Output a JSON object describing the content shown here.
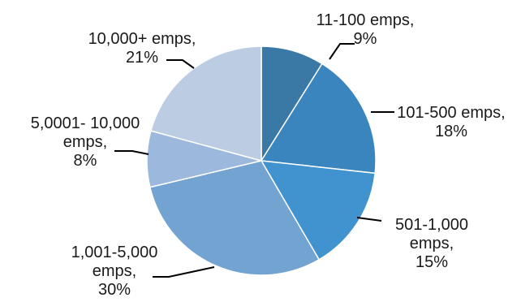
{
  "chart_data": {
    "type": "pie",
    "title": "",
    "start": "12 o'clock, clockwise",
    "slices": [
      {
        "category": "11-100 emps",
        "value": 9,
        "label_lines": [
          "11-100 emps,",
          "9%"
        ],
        "color": "#3a78a6"
      },
      {
        "category": "101-500 emps",
        "value": 18,
        "label_lines": [
          "101-500 emps,",
          "18%"
        ],
        "color": "#3a85bd"
      },
      {
        "category": "501-1,000 emps",
        "value": 15,
        "label_lines": [
          "501-1,000",
          "emps,",
          "15%"
        ],
        "color": "#4093cf"
      },
      {
        "category": "1,001-5,000 emps",
        "value": 30,
        "label_lines": [
          "1,001-5,000",
          "emps,",
          "30%"
        ],
        "color": "#72a3d1"
      },
      {
        "category": "5,0001- 10,000 emps",
        "value": 8,
        "label_lines": [
          "5,0001- 10,000",
          "emps,",
          "8%"
        ],
        "color": "#9db8dd"
      },
      {
        "category": "10,000+ emps",
        "value": 21,
        "label_lines": [
          "10,000+ emps,",
          "21%"
        ],
        "color": "#bccde3"
      }
    ]
  }
}
